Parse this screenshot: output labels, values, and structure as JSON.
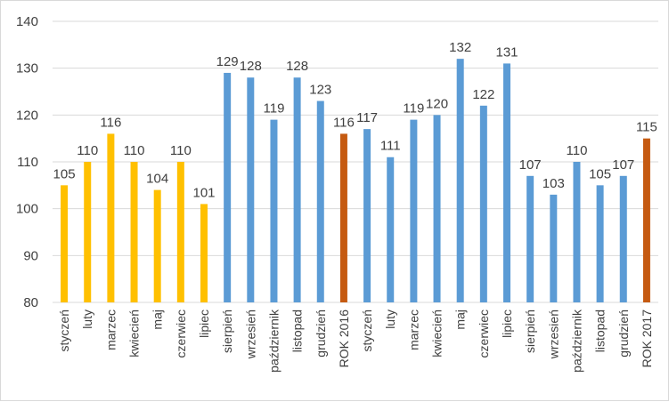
{
  "chart_data": {
    "type": "bar",
    "title": "",
    "xlabel": "",
    "ylabel": "",
    "ylim": [
      80,
      140
    ],
    "yticks": [
      80,
      90,
      100,
      110,
      120,
      130,
      140
    ],
    "grid": true,
    "legend": "none",
    "categories": [
      "styczeń",
      "luty",
      "marzec",
      "kwiecień",
      "maj",
      "czerwiec",
      "lipiec",
      "sierpień",
      "wrzesień",
      "październik",
      "listopad",
      "grudzień",
      "ROK 2016",
      "styczeń",
      "luty",
      "marzec",
      "kwiecień",
      "maj",
      "czerwiec",
      "lipiec",
      "sierpień",
      "wrzesień",
      "październik",
      "listopad",
      "grudzień",
      "ROK 2017"
    ],
    "values": [
      105,
      110,
      116,
      110,
      104,
      110,
      101,
      129,
      128,
      119,
      128,
      123,
      116,
      117,
      111,
      119,
      120,
      132,
      122,
      131,
      107,
      103,
      110,
      105,
      107,
      115
    ],
    "bar_groups": [
      "yellow",
      "yellow",
      "yellow",
      "yellow",
      "yellow",
      "yellow",
      "yellow",
      "blue",
      "blue",
      "blue",
      "blue",
      "blue",
      "orange",
      "blue",
      "blue",
      "blue",
      "blue",
      "blue",
      "blue",
      "blue",
      "blue",
      "blue",
      "blue",
      "blue",
      "blue",
      "orange"
    ],
    "colors": {
      "yellow": "#FFC000",
      "blue": "#5B9BD5",
      "orange": "#C55A11",
      "grid": "#D9D9D9",
      "text": "#404040"
    }
  }
}
